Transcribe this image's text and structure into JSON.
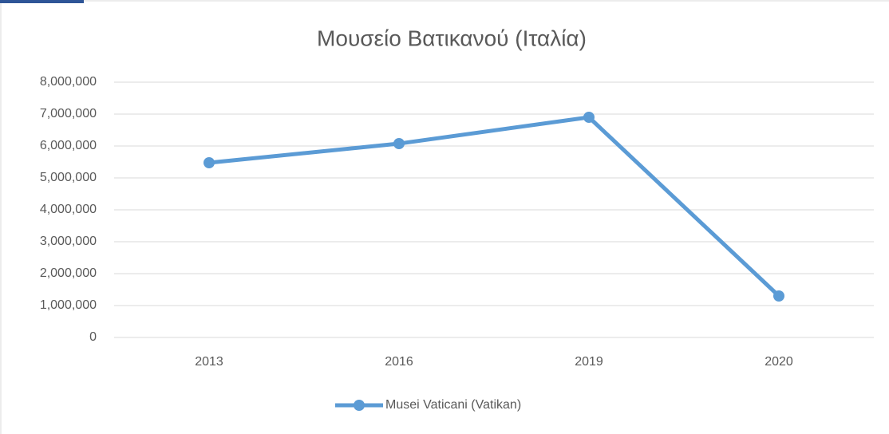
{
  "chart_data": {
    "type": "line",
    "title": "Μουσείο Βατικανού (Ιταλία)",
    "categories": [
      "2013",
      "2016",
      "2019",
      "2020"
    ],
    "series": [
      {
        "name": "Musei Vaticani (Vatikan)",
        "color": "#5b9bd5",
        "values": [
          5475000,
          6075000,
          6900000,
          1300000
        ]
      }
    ],
    "ylim": [
      0,
      8000000
    ],
    "yticks": [
      0,
      {
        "value": 1000000,
        "label": "1,000,000"
      },
      {
        "value": 2000000,
        "label": "2,000,000"
      },
      {
        "value": 3000000,
        "label": "3,000,000"
      },
      {
        "value": 4000000,
        "label": "4,000,000"
      },
      {
        "value": 5000000,
        "label": "5,000,000"
      },
      {
        "value": 6000000,
        "label": "6,000,000"
      },
      {
        "value": 7000000,
        "label": "7,000,000"
      },
      {
        "value": 8000000,
        "label": "8,000,000"
      }
    ],
    "grid": true,
    "legend": "bottom"
  }
}
